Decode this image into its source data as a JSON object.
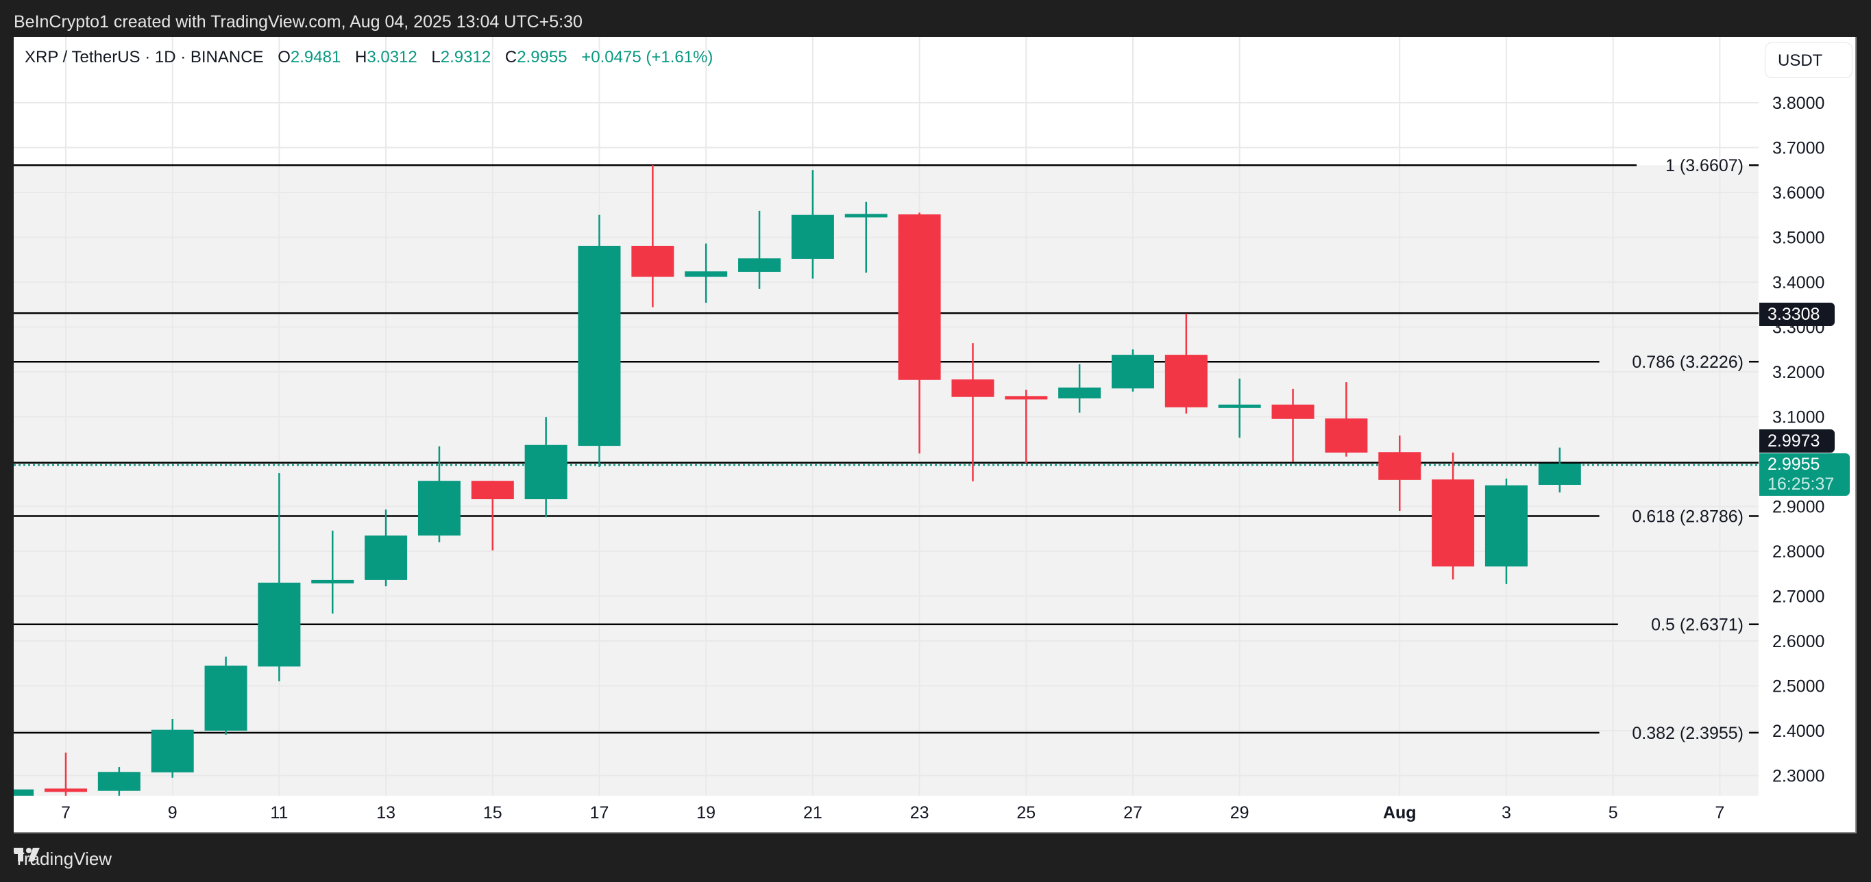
{
  "header": {
    "attribution": "BeInCrypto1 created with TradingView.com, Aug 04, 2025 13:04 UTC+5:30"
  },
  "legend": {
    "symbol": "XRP / TetherUS · 1D · BINANCE",
    "open_label": "O",
    "open": "2.9481",
    "high_label": "H",
    "high": "3.0312",
    "low_label": "L",
    "low": "2.9312",
    "close_label": "C",
    "close": "2.9955",
    "change": "+0.0475 (+1.61%)"
  },
  "axis": {
    "currency_button": "USDT",
    "price_ticks": [
      "3.8000",
      "3.7000",
      "3.6000",
      "3.5000",
      "3.4000",
      "3.3000",
      "3.2000",
      "3.1000",
      "3.0000",
      "2.9000",
      "2.8000",
      "2.7000",
      "2.6000",
      "2.5000",
      "2.4000",
      "2.3000"
    ],
    "date_ticks": [
      "7",
      "9",
      "11",
      "13",
      "15",
      "17",
      "19",
      "21",
      "23",
      "25",
      "27",
      "29",
      "Aug",
      "3",
      "5",
      "7"
    ],
    "tags": {
      "level_tag": "3.3308",
      "high_tag": "2.9973",
      "last_price": "2.9955",
      "countdown": "16:25:37"
    }
  },
  "fib_levels": [
    {
      "label": "1 (3.6607)",
      "price": 3.6607
    },
    {
      "label": "0.786 (3.2226)",
      "price": 3.2226
    },
    {
      "label": "0.618 (2.8786)",
      "price": 2.8786
    },
    {
      "label": "0.5 (2.6371)",
      "price": 2.6371
    },
    {
      "label": "0.382 (2.3955)",
      "price": 2.3955
    }
  ],
  "horizontal_lines": [
    3.3308,
    2.9973
  ],
  "colors": {
    "up": "#089981",
    "down": "#f23645",
    "zone_fill": "#f2f2f2",
    "grid": "#e9e9e9",
    "level_line": "#000000",
    "tag_dark": "#131722"
  },
  "footer": {
    "brand": "TradingView"
  },
  "chart_data": {
    "type": "candlestick",
    "title": "XRP / TetherUS · 1D · BINANCE",
    "xlabel": "",
    "ylabel": "USDT",
    "ylim": [
      2.26,
      3.86
    ],
    "grid": true,
    "categories": [
      "Jul 6",
      "Jul 7",
      "Jul 8",
      "Jul 9",
      "Jul 10",
      "Jul 11",
      "Jul 12",
      "Jul 13",
      "Jul 14",
      "Jul 15",
      "Jul 16",
      "Jul 17",
      "Jul 18",
      "Jul 19",
      "Jul 20",
      "Jul 21",
      "Jul 22",
      "Jul 23",
      "Jul 24",
      "Jul 25",
      "Jul 26",
      "Jul 27",
      "Jul 28",
      "Jul 29",
      "Jul 30",
      "Jul 31",
      "Aug 1",
      "Aug 2",
      "Aug 3",
      "Aug 4"
    ],
    "ohlc": [
      {
        "o": 2.24,
        "h": 2.28,
        "l": 2.23,
        "c": 2.269
      },
      {
        "o": 2.271,
        "h": 2.351,
        "l": 2.25,
        "c": 2.269
      },
      {
        "o": 2.266,
        "h": 2.319,
        "l": 2.255,
        "c": 2.308
      },
      {
        "o": 2.307,
        "h": 2.426,
        "l": 2.295,
        "c": 2.402
      },
      {
        "o": 2.4,
        "h": 2.565,
        "l": 2.391,
        "c": 2.545
      },
      {
        "o": 2.543,
        "h": 2.974,
        "l": 2.51,
        "c": 2.73
      },
      {
        "o": 2.73,
        "h": 2.846,
        "l": 2.661,
        "c": 2.736
      },
      {
        "o": 2.736,
        "h": 2.893,
        "l": 2.722,
        "c": 2.835
      },
      {
        "o": 2.835,
        "h": 3.034,
        "l": 2.82,
        "c": 2.957
      },
      {
        "o": 2.957,
        "h": 2.957,
        "l": 2.802,
        "c": 2.916
      },
      {
        "o": 2.916,
        "h": 3.099,
        "l": 2.876,
        "c": 3.037
      },
      {
        "o": 3.035,
        "h": 3.55,
        "l": 2.988,
        "c": 3.481
      },
      {
        "o": 3.481,
        "h": 3.661,
        "l": 3.344,
        "c": 3.412
      },
      {
        "o": 3.412,
        "h": 3.486,
        "l": 3.354,
        "c": 3.424
      },
      {
        "o": 3.423,
        "h": 3.559,
        "l": 3.385,
        "c": 3.453
      },
      {
        "o": 3.452,
        "h": 3.65,
        "l": 3.408,
        "c": 3.55
      },
      {
        "o": 3.55,
        "h": 3.579,
        "l": 3.421,
        "c": 3.552
      },
      {
        "o": 3.551,
        "h": 3.555,
        "l": 3.018,
        "c": 3.182
      },
      {
        "o": 3.183,
        "h": 3.264,
        "l": 2.956,
        "c": 3.144
      },
      {
        "o": 3.146,
        "h": 3.16,
        "l": 2.997,
        "c": 3.143
      },
      {
        "o": 3.141,
        "h": 3.217,
        "l": 3.109,
        "c": 3.165
      },
      {
        "o": 3.163,
        "h": 3.25,
        "l": 3.156,
        "c": 3.238
      },
      {
        "o": 3.238,
        "h": 3.33,
        "l": 3.107,
        "c": 3.121
      },
      {
        "o": 3.121,
        "h": 3.185,
        "l": 3.053,
        "c": 3.127
      },
      {
        "o": 3.127,
        "h": 3.162,
        "l": 2.999,
        "c": 3.095
      },
      {
        "o": 3.096,
        "h": 3.177,
        "l": 3.011,
        "c": 3.02
      },
      {
        "o": 3.021,
        "h": 3.058,
        "l": 2.89,
        "c": 2.959
      },
      {
        "o": 2.96,
        "h": 3.02,
        "l": 2.737,
        "c": 2.766
      },
      {
        "o": 2.766,
        "h": 2.962,
        "l": 2.727,
        "c": 2.947
      },
      {
        "o": 2.9481,
        "h": 3.0312,
        "l": 2.9312,
        "c": 2.9955
      }
    ],
    "annotations": [
      "Fib 1 (3.6607)",
      "Fib 0.786 (3.2226)",
      "Fib 0.618 (2.8786)",
      "Fib 0.5 (2.6371)",
      "Fib 0.382 (2.3955)",
      "Line 3.3308",
      "Line 2.9973"
    ]
  }
}
